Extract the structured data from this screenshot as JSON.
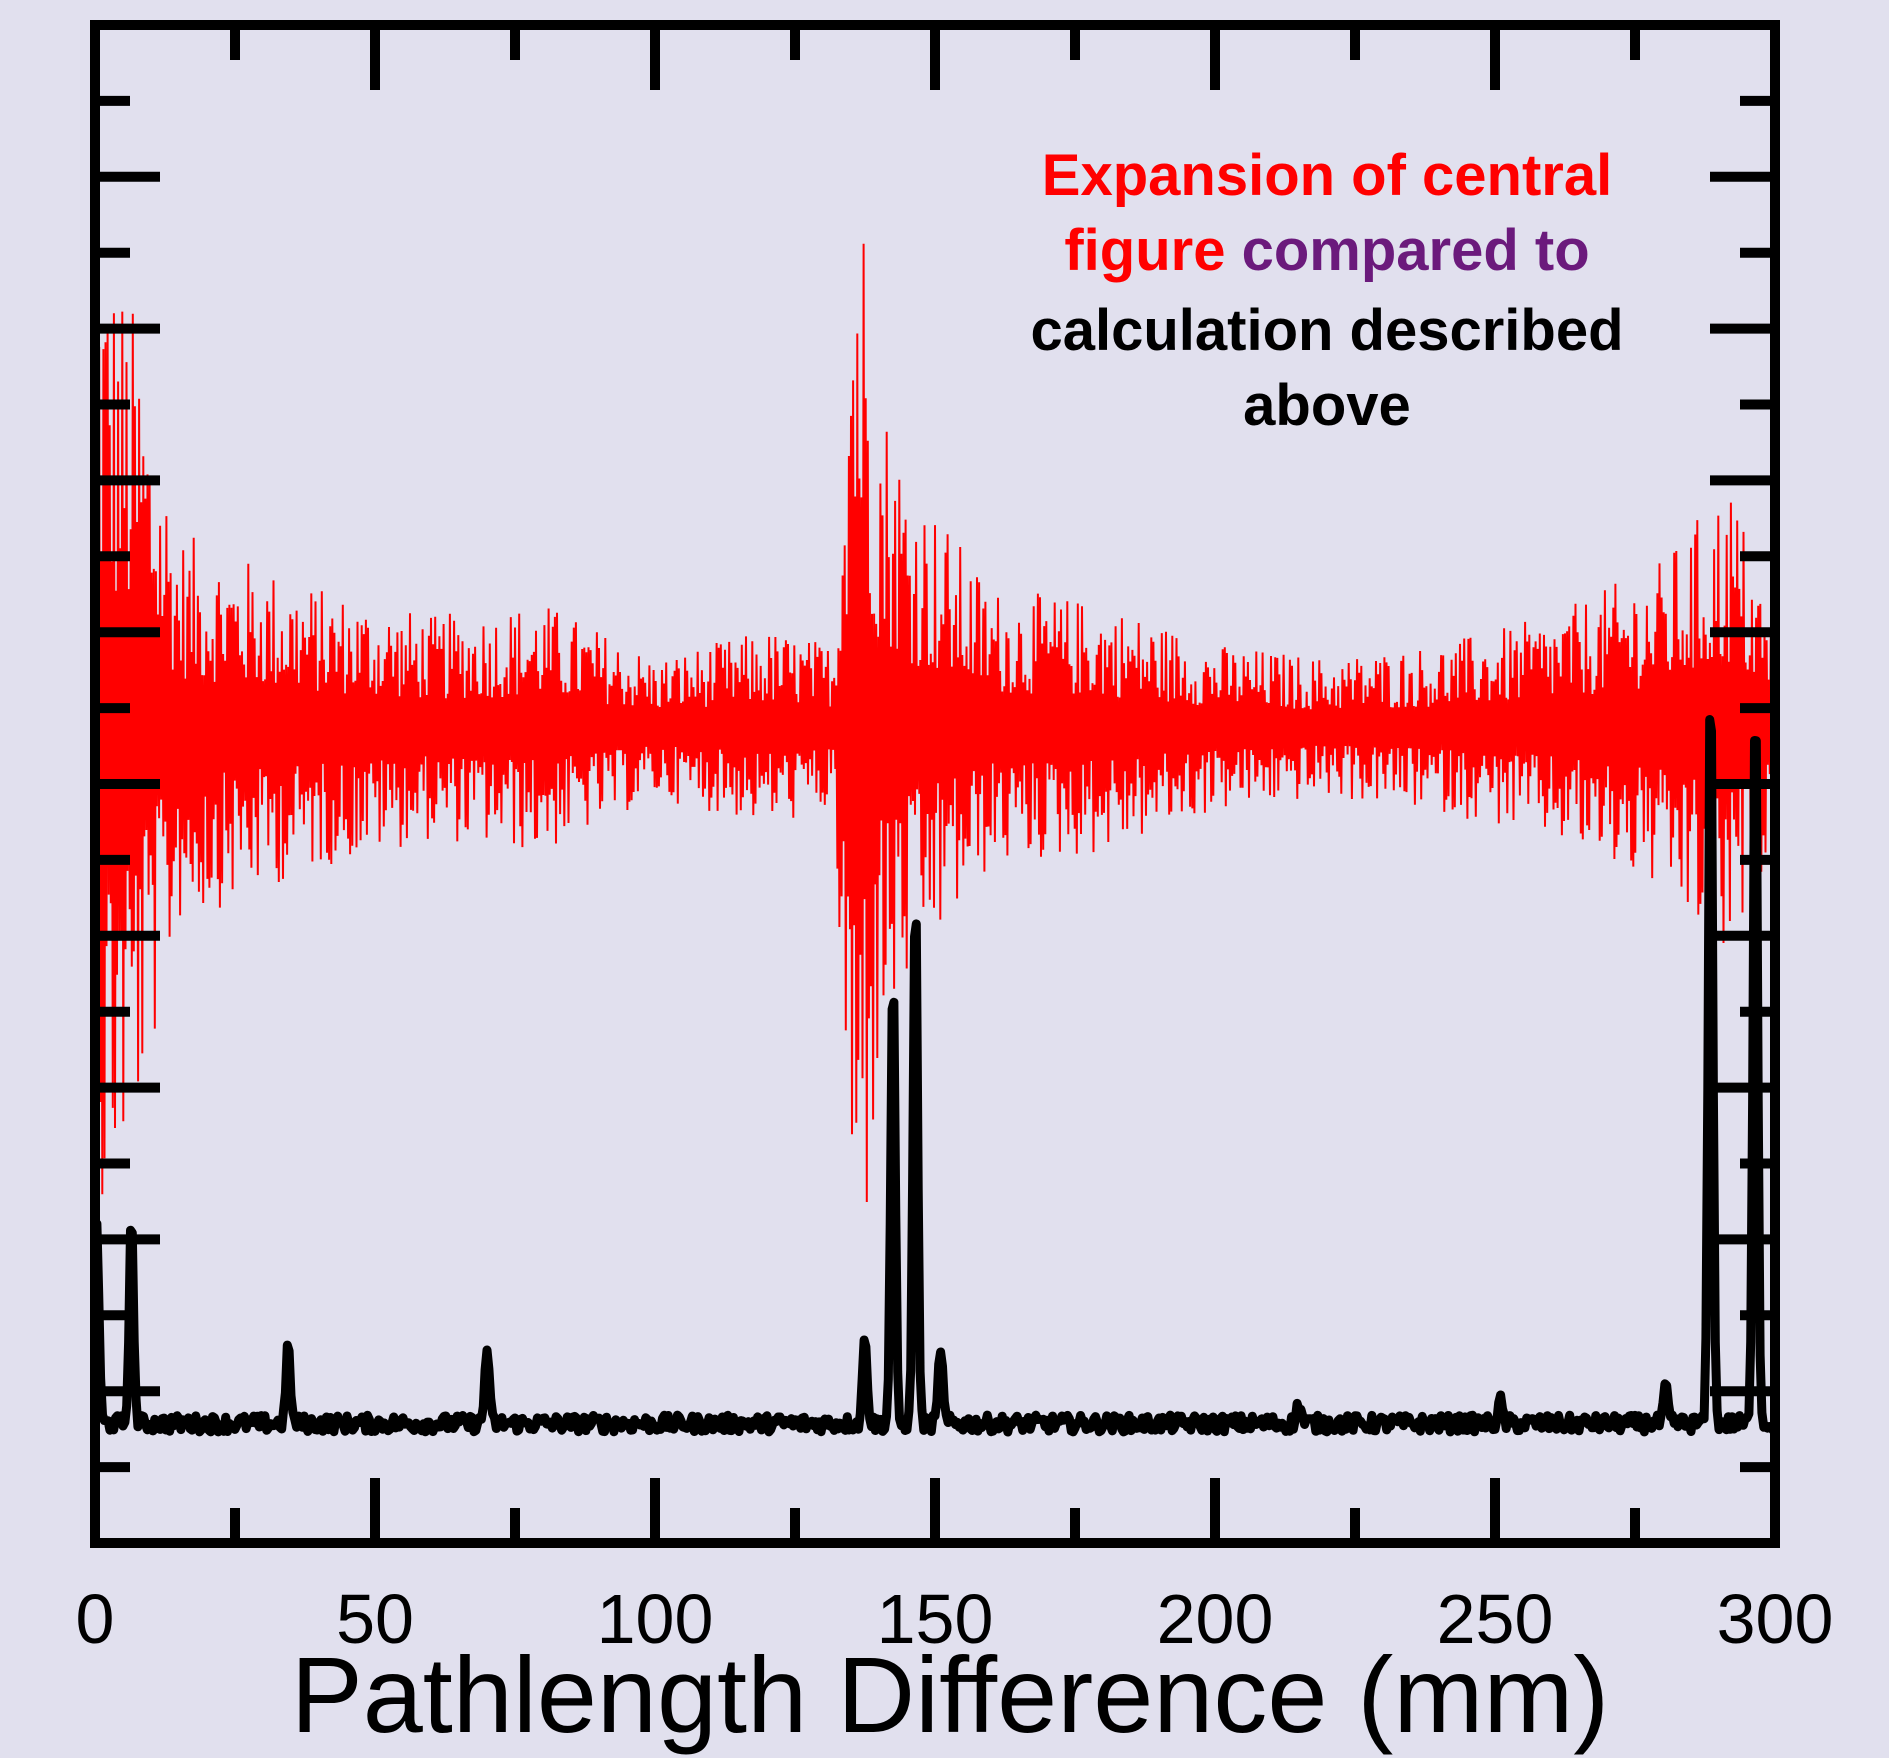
{
  "chart_data": {
    "type": "line",
    "xlabel": "Pathlength Difference (mm)",
    "ylabel": "",
    "xlim": [
      0,
      300
    ],
    "ylim": [
      -0.08,
      1.0
    ],
    "x_ticks": [
      0,
      50,
      100,
      150,
      200,
      250,
      300
    ],
    "y_tick_count": 9,
    "grid": false,
    "legend": "none",
    "background_color": "#e1e0ee",
    "annotation": {
      "line1": "Expansion of central",
      "line2_a": "figure",
      "line2_b": "compared to",
      "line3": "calculation described",
      "line4": "above",
      "colors": {
        "red": "#ff0000",
        "purple": "#6b1a7c",
        "black": "#000000"
      }
    },
    "series": [
      {
        "color": "#ff0000",
        "style": "thin oscillating trace",
        "x_range": [
          0,
          300
        ],
        "baseline": 0.5,
        "envelope_points": [
          [
            0,
            0.4
          ],
          [
            3,
            0.34
          ],
          [
            7,
            0.3
          ],
          [
            15,
            0.14
          ],
          [
            40,
            0.1
          ],
          [
            60,
            0.08
          ],
          [
            80,
            0.09
          ],
          [
            100,
            0.05
          ],
          [
            120,
            0.07
          ],
          [
            132,
            0.06
          ],
          [
            135,
            0.4
          ],
          [
            136,
            0.45
          ],
          [
            140,
            0.25
          ],
          [
            146,
            0.18
          ],
          [
            160,
            0.1
          ],
          [
            180,
            0.09
          ],
          [
            200,
            0.06
          ],
          [
            220,
            0.05
          ],
          [
            240,
            0.06
          ],
          [
            260,
            0.08
          ],
          [
            280,
            0.12
          ],
          [
            292,
            0.18
          ],
          [
            300,
            0.07
          ]
        ]
      },
      {
        "color": "#000000",
        "style": "thick line",
        "baseline": 0.005,
        "peaks": [
          {
            "x": 0.3,
            "y": 0.15
          },
          {
            "x": 6.5,
            "y": 0.15
          },
          {
            "x": 34.5,
            "y": 0.06
          },
          {
            "x": 70,
            "y": 0.06
          },
          {
            "x": 137.5,
            "y": 0.07
          },
          {
            "x": 142.5,
            "y": 0.33
          },
          {
            "x": 146.5,
            "y": 0.39
          },
          {
            "x": 151,
            "y": 0.06
          },
          {
            "x": 215,
            "y": 0.02
          },
          {
            "x": 251,
            "y": 0.02
          },
          {
            "x": 280.5,
            "y": 0.03
          },
          {
            "x": 288.5,
            "y": 0.55
          },
          {
            "x": 296.5,
            "y": 0.54
          }
        ]
      }
    ]
  }
}
